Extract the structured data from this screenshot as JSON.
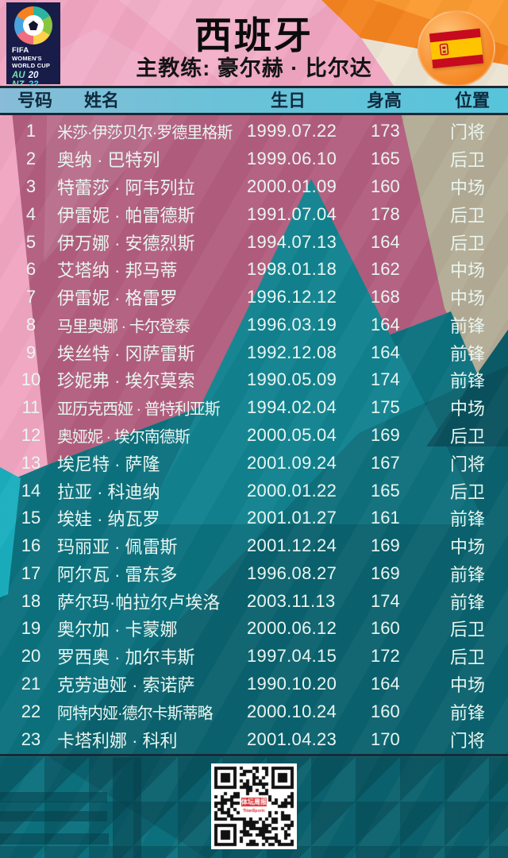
{
  "header": {
    "title": "西班牙",
    "coach": "主教练: 豪尔赫 · 比尔达",
    "fifa_logo": {
      "fifa": "FIFA",
      "womens": "WOMEN'S",
      "world_cup": "WORLD CUP",
      "au": "AU",
      "nz": "NZ",
      "y20": "20",
      "y23": "23"
    }
  },
  "table": {
    "columns": [
      "号码",
      "姓名",
      "生日",
      "身高",
      "位置"
    ],
    "rows": [
      {
        "no": "1",
        "name": "米莎·伊莎贝尔·罗德里格斯",
        "dob": "1999.07.22",
        "height": "173",
        "pos": "门将"
      },
      {
        "no": "2",
        "name": "奥纳 · 巴特列",
        "dob": "1999.06.10",
        "height": "165",
        "pos": "后卫"
      },
      {
        "no": "3",
        "name": "特蕾莎 · 阿韦列拉",
        "dob": "2000.01.09",
        "height": "160",
        "pos": "中场"
      },
      {
        "no": "4",
        "name": "伊雷妮 · 帕雷德斯",
        "dob": "1991.07.04",
        "height": "178",
        "pos": "后卫"
      },
      {
        "no": "5",
        "name": "伊万娜 · 安德烈斯",
        "dob": "1994.07.13",
        "height": "164",
        "pos": "后卫"
      },
      {
        "no": "6",
        "name": "艾塔纳 · 邦马蒂",
        "dob": "1998.01.18",
        "height": "162",
        "pos": "中场"
      },
      {
        "no": "7",
        "name": "伊雷妮 · 格雷罗",
        "dob": "1996.12.12",
        "height": "168",
        "pos": "中场"
      },
      {
        "no": "8",
        "name": "马里奥娜 · 卡尔登泰",
        "dob": "1996.03.19",
        "height": "164",
        "pos": "前锋"
      },
      {
        "no": "9",
        "name": "埃丝特 · 冈萨雷斯",
        "dob": "1992.12.08",
        "height": "164",
        "pos": "前锋"
      },
      {
        "no": "10",
        "name": "珍妮弗 · 埃尔莫索",
        "dob": "1990.05.09",
        "height": "174",
        "pos": "前锋"
      },
      {
        "no": "11",
        "name": "亚历克西娅 · 普特利亚斯",
        "dob": "1994.02.04",
        "height": "175",
        "pos": "中场"
      },
      {
        "no": "12",
        "name": "奥娅妮 · 埃尔南德斯",
        "dob": "2000.05.04",
        "height": "169",
        "pos": "后卫"
      },
      {
        "no": "13",
        "name": "埃尼特 · 萨隆",
        "dob": "2001.09.24",
        "height": "167",
        "pos": "门将"
      },
      {
        "no": "14",
        "name": "拉亚 · 科迪纳",
        "dob": "2000.01.22",
        "height": "165",
        "pos": "后卫"
      },
      {
        "no": "15",
        "name": "埃娃 · 纳瓦罗",
        "dob": "2001.01.27",
        "height": "161",
        "pos": "前锋"
      },
      {
        "no": "16",
        "name": "玛丽亚 · 佩雷斯",
        "dob": "2001.12.24",
        "height": "169",
        "pos": "中场"
      },
      {
        "no": "17",
        "name": "阿尔瓦 · 雷东多",
        "dob": "1996.08.27",
        "height": "169",
        "pos": "前锋"
      },
      {
        "no": "18",
        "name": "萨尔玛·帕拉尔卢埃洛",
        "dob": "2003.11.13",
        "height": "174",
        "pos": "前锋"
      },
      {
        "no": "19",
        "name": "奥尔加 · 卡蒙娜",
        "dob": "2000.06.12",
        "height": "160",
        "pos": "后卫"
      },
      {
        "no": "20",
        "name": "罗西奥 · 加尔韦斯",
        "dob": "1997.04.15",
        "height": "172",
        "pos": "后卫"
      },
      {
        "no": "21",
        "name": "克劳迪娅 · 索诺萨",
        "dob": "1990.10.20",
        "height": "164",
        "pos": "中场"
      },
      {
        "no": "22",
        "name": "阿特内娅·德尔卡斯蒂略",
        "dob": "2000.10.24",
        "height": "160",
        "pos": "前锋"
      },
      {
        "no": "23",
        "name": "卡塔利娜 · 科利",
        "dob": "2001.04.23",
        "height": "170",
        "pos": "门将"
      }
    ]
  },
  "footer": {
    "qr_logo_line1": "体坛周报",
    "qr_logo_line2": "TitanSports"
  },
  "colors": {
    "pink": "#f0a5c1",
    "orange": "#f3821e",
    "cream": "#ece4d3",
    "mauve": "#b25e7e",
    "tan": "#b3ab95",
    "teal": "#0c717e",
    "teal_bright": "#11828f",
    "teal_dark": "#0a5c69",
    "cyan_accent": "#1aaebe",
    "header_band": "#6cc2d8",
    "divider": "#1c2834",
    "row_text": "#e9f6f0",
    "header_text": "#0f2a3e",
    "flag_red": "#c60b1e",
    "flag_yellow": "#ffc400"
  }
}
